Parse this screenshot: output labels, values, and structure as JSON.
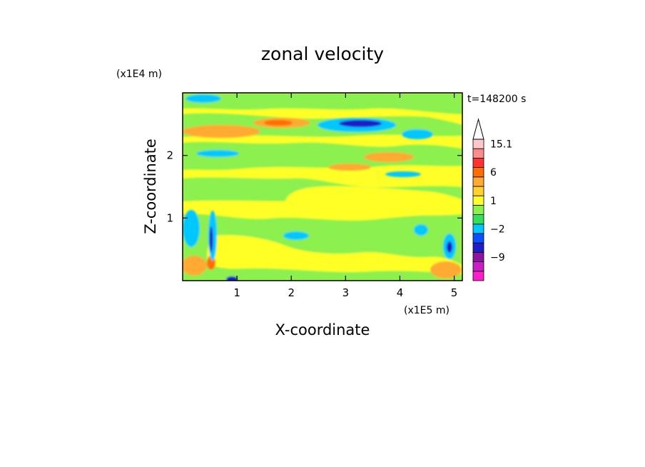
{
  "chart_data": {
    "type": "heatmap",
    "title": "zonal velocity",
    "xlabel": "X-coordinate",
    "ylabel": "Z-coordinate",
    "x_scale_label": "(x1E5 m)",
    "y_scale_label": "(x1E4 m)",
    "time_label": "t=148200 s",
    "xlim": [
      0,
      5.15
    ],
    "ylim": [
      0,
      3.0
    ],
    "x_ticks": [
      1,
      2,
      3,
      4,
      5
    ],
    "y_ticks": [
      1,
      2
    ],
    "colorbar": {
      "levels": [
        -15,
        -12,
        -9,
        -6,
        -3,
        -2,
        -1,
        0,
        1,
        2,
        3,
        6,
        9,
        12,
        15.1
      ],
      "colors": [
        "#ff1ec8",
        "#c81ec8",
        "#8c14a0",
        "#1e1ec8",
        "#0a50ff",
        "#00c8ff",
        "#32e05a",
        "#8cf050",
        "#ffff28",
        "#ffd232",
        "#ffaa32",
        "#ff6e00",
        "#ff3232",
        "#ff8c8c",
        "#ffc8c8"
      ],
      "labels": [
        {
          "value": 15.1,
          "text": "15.1"
        },
        {
          "value": 6,
          "text": "6"
        },
        {
          "value": 1,
          "text": "1"
        },
        {
          "value": -2,
          "text": "−2"
        },
        {
          "value": -9,
          "text": "−9"
        }
      ],
      "extend_top": true
    }
  }
}
